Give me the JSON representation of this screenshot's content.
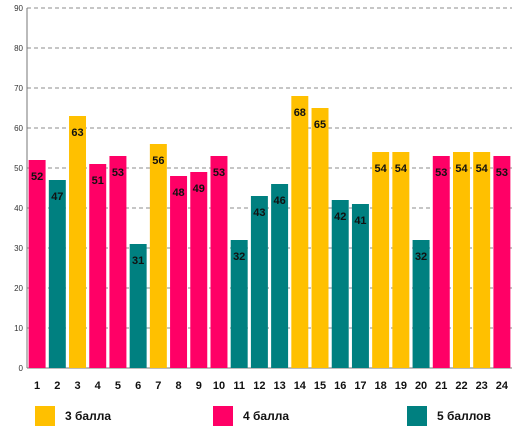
{
  "chart_data": {
    "type": "bar",
    "categories": [
      "1",
      "2",
      "3",
      "4",
      "5",
      "6",
      "7",
      "8",
      "9",
      "10",
      "11",
      "12",
      "13",
      "14",
      "15",
      "16",
      "17",
      "18",
      "19",
      "20",
      "21",
      "22",
      "23",
      "24"
    ],
    "values": [
      52,
      47,
      63,
      51,
      53,
      31,
      56,
      48,
      49,
      53,
      32,
      43,
      46,
      68,
      65,
      42,
      41,
      54,
      54,
      32,
      53,
      54,
      54,
      53
    ],
    "groups": [
      1,
      2,
      0,
      1,
      1,
      2,
      0,
      1,
      1,
      1,
      2,
      2,
      2,
      0,
      0,
      2,
      2,
      0,
      0,
      2,
      1,
      0,
      0,
      1
    ],
    "series": [
      {
        "name": "3 балла",
        "color": "#FFC000"
      },
      {
        "name": "4 балла",
        "color": "#FF0066"
      },
      {
        "name": "5 баллов",
        "color": "#008080"
      }
    ],
    "ylim": [
      0,
      90
    ],
    "yticks": [
      "0",
      "10",
      "20",
      "30",
      "40",
      "50",
      "60",
      "70",
      "80",
      "90"
    ],
    "grid": true,
    "legend_position": "bottom",
    "title": "",
    "xlabel": "",
    "ylabel": ""
  }
}
